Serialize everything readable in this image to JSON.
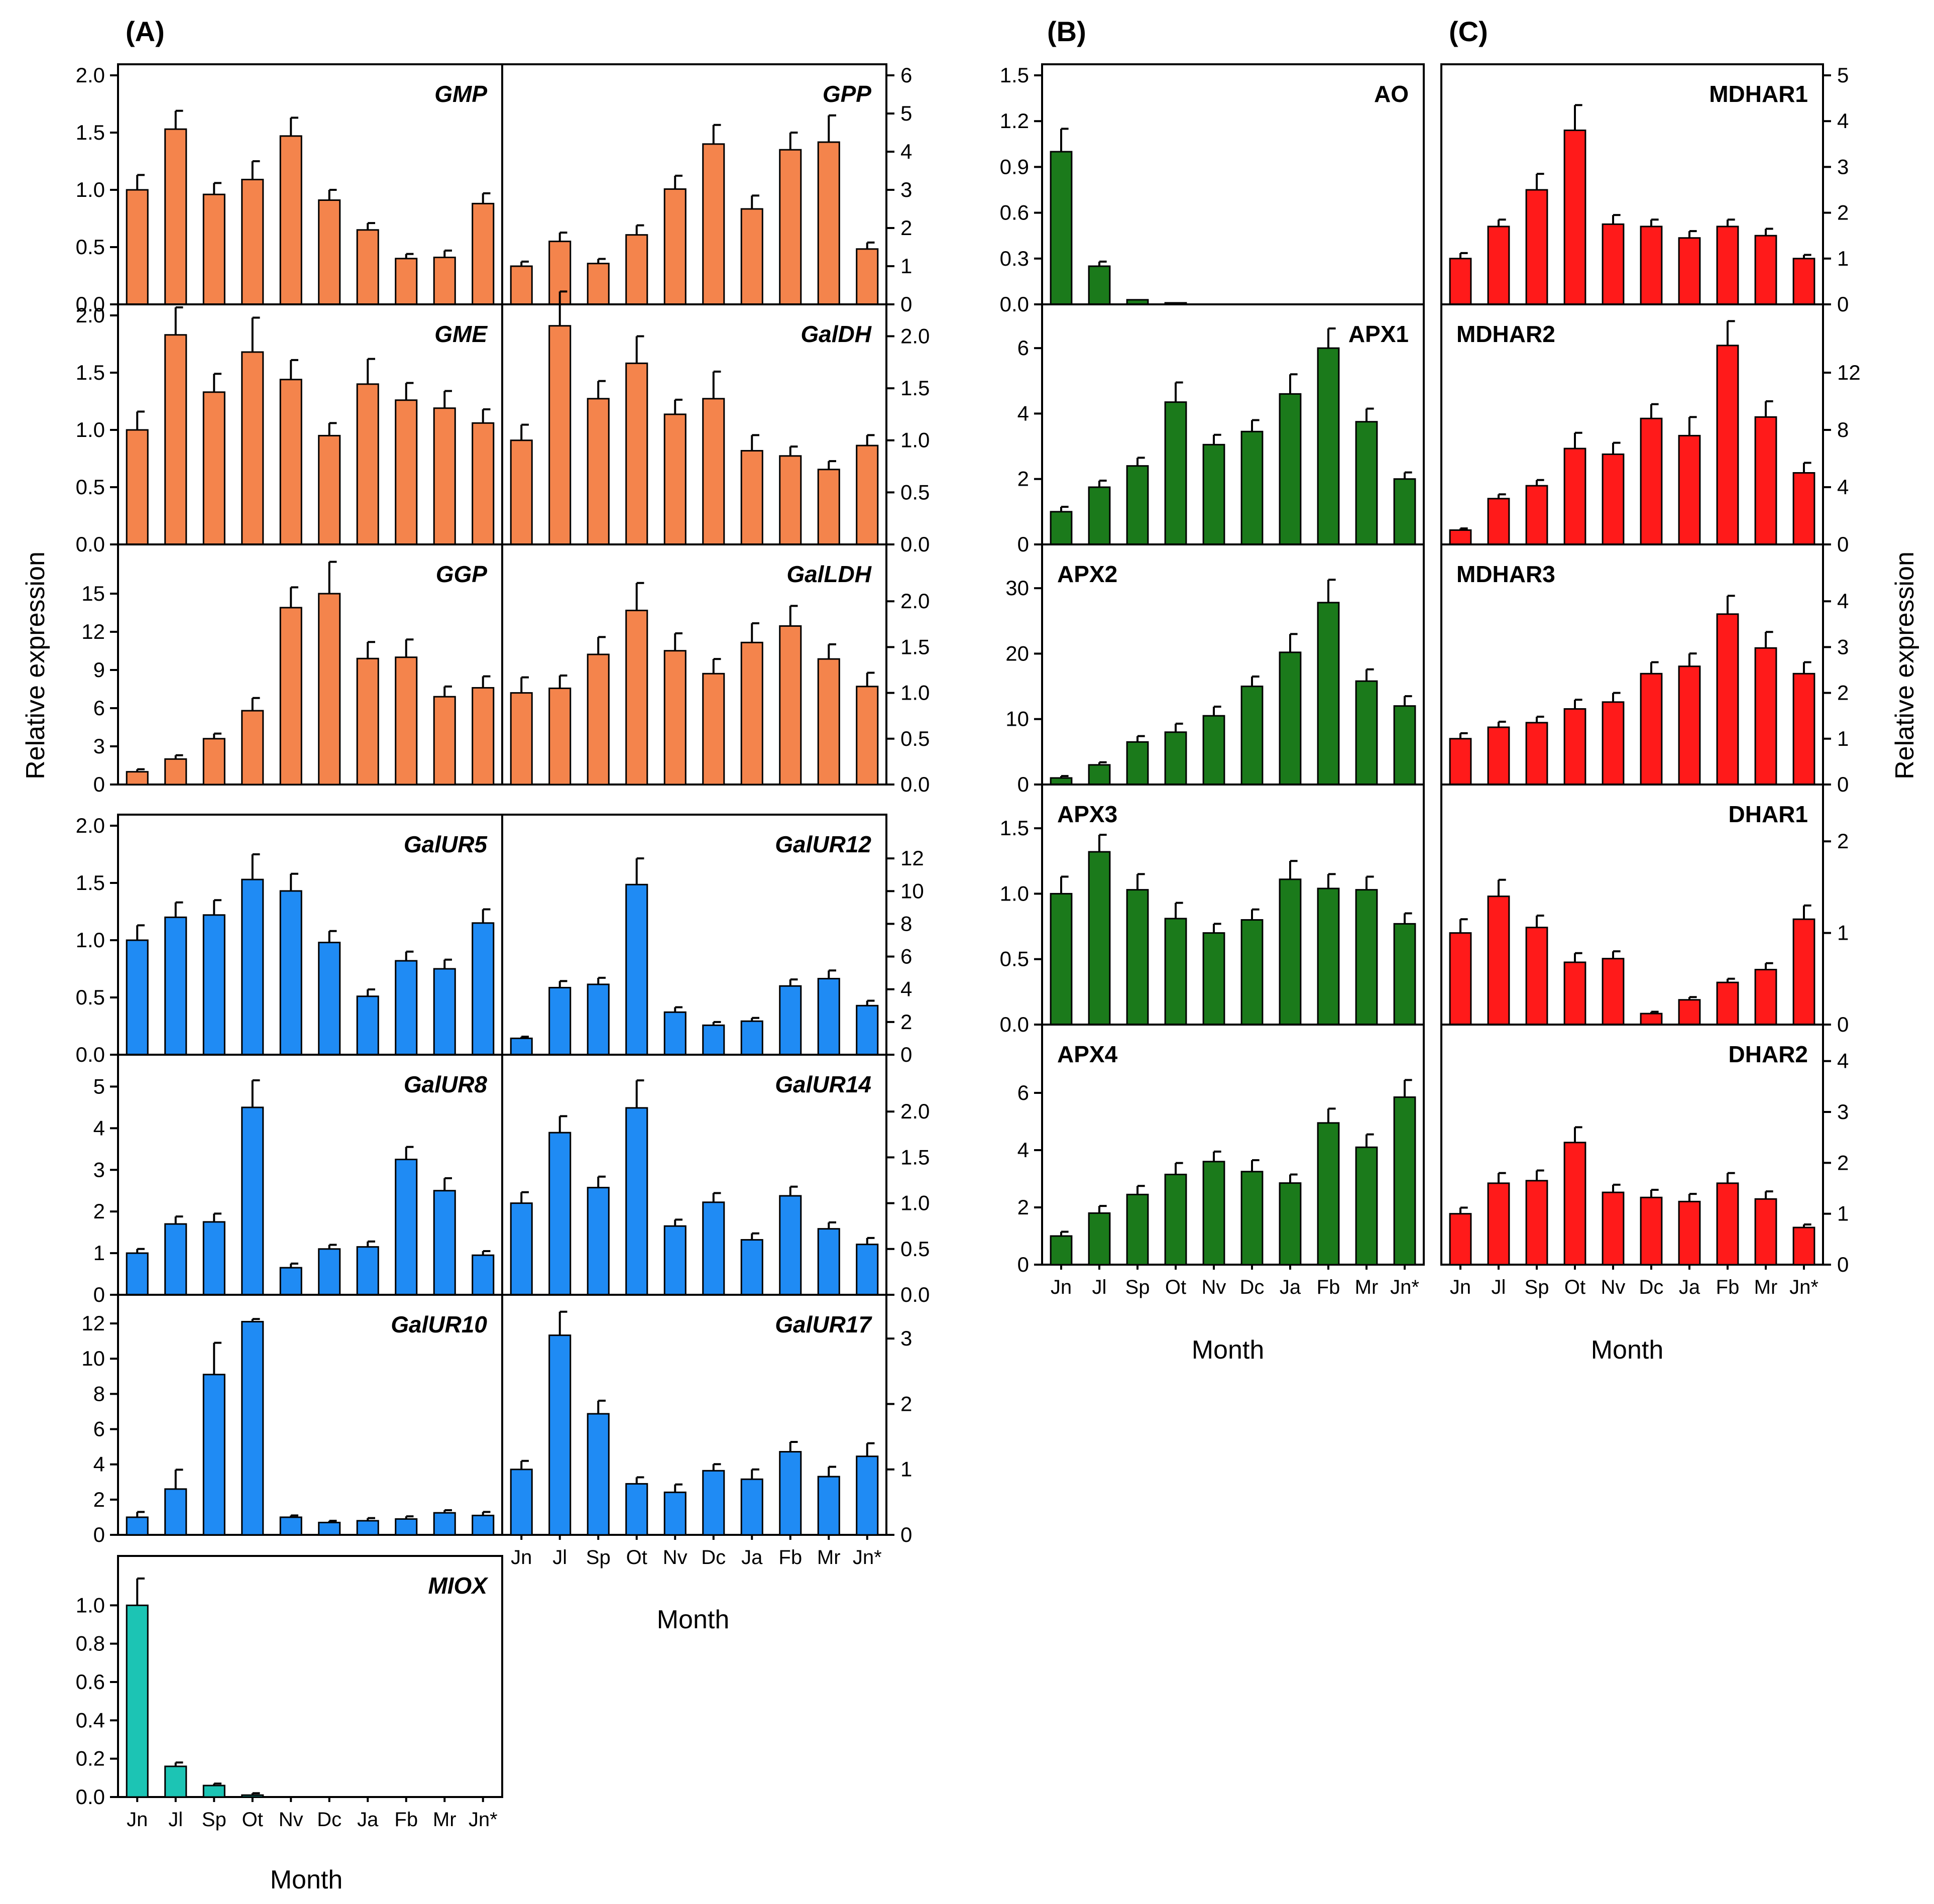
{
  "figure": {
    "panel_letters": [
      "(A)",
      "(B)",
      "(C)"
    ],
    "ylabel": "Relative expression",
    "xlabel": "Month",
    "months": [
      "Jn",
      "Jl",
      "Sp",
      "Ot",
      "Nv",
      "Dc",
      "Ja",
      "Fb",
      "Mr",
      "Jn*"
    ]
  },
  "colors": {
    "orange": "#f4844c",
    "blue": "#1f8bf4",
    "teal": "#1cc4b4",
    "green": "#1b7a1b",
    "red": "#ff1a1a"
  },
  "chart_data": [
    {
      "id": "GMP",
      "type": "bar",
      "title": "GMP",
      "italic": true,
      "color": "orange",
      "ylim": [
        0,
        2.0
      ],
      "ticks": [
        "0.0",
        "0.5",
        "1.0",
        "1.5",
        "2.0"
      ],
      "values": [
        1.0,
        1.53,
        0.96,
        1.09,
        1.47,
        0.91,
        0.65,
        0.4,
        0.41,
        0.88
      ],
      "errors": [
        0.13,
        0.16,
        0.1,
        0.16,
        0.16,
        0.09,
        0.06,
        0.04,
        0.06,
        0.09
      ]
    },
    {
      "id": "GPP",
      "type": "bar",
      "title": "GPP",
      "italic": true,
      "color": "orange",
      "ylim": [
        0,
        6
      ],
      "ticks": [
        "0",
        "1",
        "2",
        "3",
        "4",
        "5",
        "6"
      ],
      "values": [
        1.0,
        1.65,
        1.07,
        1.82,
        3.02,
        4.2,
        2.5,
        4.05,
        4.25,
        1.45
      ],
      "errors": [
        0.12,
        0.23,
        0.12,
        0.25,
        0.35,
        0.5,
        0.35,
        0.45,
        0.7,
        0.17
      ]
    },
    {
      "id": "GME",
      "type": "bar",
      "title": "GME",
      "italic": true,
      "color": "orange",
      "ylim": [
        0,
        2.0
      ],
      "ticks": [
        "0.0",
        "0.5",
        "1.0",
        "1.5",
        "2.0"
      ],
      "values": [
        1.0,
        1.83,
        1.33,
        1.68,
        1.44,
        0.95,
        1.4,
        1.26,
        1.19,
        1.06
      ],
      "errors": [
        0.16,
        0.24,
        0.16,
        0.3,
        0.17,
        0.11,
        0.22,
        0.15,
        0.15,
        0.12
      ]
    },
    {
      "id": "GalDH",
      "type": "bar",
      "title": "GalDH",
      "italic": true,
      "color": "orange",
      "ylim": [
        0,
        2.2
      ],
      "ticks": [
        "0.0",
        "0.5",
        "1.0",
        "1.5",
        "2.0"
      ],
      "values": [
        1.0,
        2.1,
        1.4,
        1.74,
        1.25,
        1.4,
        0.9,
        0.85,
        0.72,
        0.95
      ],
      "errors": [
        0.15,
        0.33,
        0.17,
        0.26,
        0.14,
        0.26,
        0.15,
        0.09,
        0.08,
        0.1
      ]
    },
    {
      "id": "GGP",
      "type": "bar",
      "title": "GGP",
      "italic": true,
      "color": "orange",
      "ylim": [
        0,
        18
      ],
      "ticks": [
        "0",
        "3",
        "6",
        "9",
        "12",
        "15"
      ],
      "values": [
        1.0,
        2.0,
        3.6,
        5.8,
        13.9,
        15.0,
        9.9,
        10.0,
        6.9,
        7.6
      ],
      "errors": [
        0.2,
        0.3,
        0.4,
        1.0,
        1.6,
        2.5,
        1.3,
        1.4,
        0.8,
        0.9
      ]
    },
    {
      "id": "GalLDH",
      "type": "bar",
      "title": "GalLDH",
      "italic": true,
      "color": "orange",
      "ylim": [
        0,
        2.5
      ],
      "ticks": [
        "0.0",
        "0.5",
        "1.0",
        "1.5",
        "2.0"
      ],
      "values": [
        1.0,
        1.05,
        1.42,
        1.9,
        1.46,
        1.21,
        1.55,
        1.73,
        1.37,
        1.07
      ],
      "errors": [
        0.17,
        0.14,
        0.19,
        0.3,
        0.19,
        0.16,
        0.21,
        0.22,
        0.16,
        0.15
      ]
    },
    {
      "id": "GalUR5",
      "type": "bar",
      "title": "GalUR5",
      "italic": true,
      "color": "blue",
      "ylim": [
        0,
        2.0
      ],
      "ticks": [
        "0.0",
        "0.5",
        "1.0",
        "1.5",
        "2.0"
      ],
      "values": [
        1.0,
        1.2,
        1.22,
        1.53,
        1.43,
        0.98,
        0.51,
        0.82,
        0.75,
        1.15
      ],
      "errors": [
        0.13,
        0.13,
        0.13,
        0.22,
        0.15,
        0.1,
        0.06,
        0.08,
        0.08,
        0.12
      ]
    },
    {
      "id": "GalUR12",
      "type": "bar",
      "title": "GalUR12",
      "italic": true,
      "color": "blue",
      "ylim": [
        0,
        14
      ],
      "ticks": [
        "0",
        "2",
        "4",
        "6",
        "8",
        "10",
        "12"
      ],
      "values": [
        1.0,
        4.1,
        4.3,
        10.4,
        2.6,
        1.8,
        2.05,
        4.2,
        4.65,
        3.0
      ],
      "errors": [
        0.1,
        0.4,
        0.4,
        1.6,
        0.3,
        0.2,
        0.2,
        0.4,
        0.5,
        0.3
      ]
    },
    {
      "id": "GalUR8",
      "type": "bar",
      "title": "GalUR8",
      "italic": true,
      "color": "blue",
      "ylim": [
        0,
        5.5
      ],
      "ticks": [
        "0",
        "1",
        "2",
        "3",
        "4",
        "5"
      ],
      "values": [
        1.0,
        1.7,
        1.75,
        4.5,
        0.65,
        1.1,
        1.15,
        3.25,
        2.5,
        0.95
      ],
      "errors": [
        0.1,
        0.18,
        0.2,
        0.65,
        0.1,
        0.1,
        0.13,
        0.3,
        0.3,
        0.1
      ]
    },
    {
      "id": "GalUR14",
      "type": "bar",
      "title": "GalUR14",
      "italic": true,
      "color": "blue",
      "ylim": [
        0,
        2.5
      ],
      "ticks": [
        "0.0",
        "0.5",
        "1.0",
        "1.5",
        "2.0"
      ],
      "values": [
        1.0,
        1.77,
        1.17,
        2.04,
        0.75,
        1.01,
        0.6,
        1.08,
        0.72,
        0.55
      ],
      "errors": [
        0.12,
        0.18,
        0.12,
        0.3,
        0.07,
        0.1,
        0.07,
        0.1,
        0.07,
        0.07
      ]
    },
    {
      "id": "GalUR10",
      "type": "bar",
      "title": "GalUR10",
      "italic": true,
      "color": "blue",
      "ylim": [
        0,
        13
      ],
      "ticks": [
        "0",
        "2",
        "4",
        "6",
        "8",
        "10",
        "12"
      ],
      "values": [
        1.0,
        2.6,
        9.1,
        12.1,
        1.0,
        0.7,
        0.8,
        0.9,
        1.25,
        1.1
      ],
      "errors": [
        0.3,
        1.1,
        1.8,
        0.15,
        0.1,
        0.1,
        0.15,
        0.15,
        0.15,
        0.2
      ]
    },
    {
      "id": "GalUR17",
      "type": "bar",
      "title": "GalUR17",
      "italic": true,
      "color": "blue",
      "ylim": [
        0,
        3.5
      ],
      "ticks": [
        "0",
        "1",
        "2",
        "3"
      ],
      "values": [
        1.0,
        3.05,
        1.85,
        0.78,
        0.65,
        0.98,
        0.85,
        1.27,
        0.89,
        1.2
      ],
      "errors": [
        0.13,
        0.36,
        0.2,
        0.1,
        0.12,
        0.1,
        0.15,
        0.15,
        0.15,
        0.2
      ]
    },
    {
      "id": "MIOX",
      "type": "bar",
      "title": "MIOX",
      "italic": true,
      "color": "teal",
      "ylim": [
        0,
        1.2
      ],
      "ticks": [
        "0.0",
        "0.2",
        "0.4",
        "0.6",
        "0.8",
        "1.0"
      ],
      "values": [
        1.0,
        0.16,
        0.06,
        0.01,
        0.0,
        0.0,
        0.0,
        0.0,
        0.0,
        0.0
      ],
      "errors": [
        0.14,
        0.02,
        0.01,
        0.01,
        0,
        0,
        0,
        0,
        0,
        0
      ]
    },
    {
      "id": "AO",
      "type": "bar",
      "title": "AO",
      "italic": false,
      "color": "green",
      "ylim": [
        0,
        1.5
      ],
      "ticks": [
        "0.0",
        "0.3",
        "0.6",
        "0.9",
        "1.2",
        "1.5"
      ],
      "values": [
        1.0,
        0.25,
        0.03,
        0.01,
        0,
        0,
        0,
        0,
        0,
        0
      ],
      "errors": [
        0.15,
        0.03,
        0,
        0,
        0,
        0,
        0,
        0,
        0,
        0
      ]
    },
    {
      "id": "APX1",
      "type": "bar",
      "title": "APX1",
      "italic": false,
      "color": "green",
      "ylim": [
        0,
        7
      ],
      "ticks": [
        "0",
        "2",
        "4",
        "6"
      ],
      "values": [
        1.0,
        1.75,
        2.4,
        4.35,
        3.05,
        3.45,
        4.6,
        6.0,
        3.75,
        2.0
      ],
      "errors": [
        0.15,
        0.2,
        0.25,
        0.6,
        0.3,
        0.35,
        0.6,
        0.6,
        0.4,
        0.2
      ]
    },
    {
      "id": "APX2",
      "type": "bar",
      "title": "APX2",
      "italic": false,
      "color": "green",
      "ylim": [
        0,
        35
      ],
      "ticks": [
        "0",
        "10",
        "20",
        "30"
      ],
      "values": [
        1.0,
        3.0,
        6.5,
        8.0,
        10.5,
        15.0,
        20.2,
        27.8,
        15.8,
        12.0
      ],
      "errors": [
        0.3,
        0.4,
        0.9,
        1.3,
        1.4,
        1.5,
        2.8,
        3.5,
        1.8,
        1.5
      ]
    },
    {
      "id": "APX3",
      "type": "bar",
      "title": "APX3",
      "italic": false,
      "color": "green",
      "ylim": [
        0,
        1.75
      ],
      "ticks": [
        "0.0",
        "0.5",
        "1.0",
        "1.5"
      ],
      "values": [
        1.0,
        1.32,
        1.03,
        0.81,
        0.7,
        0.8,
        1.11,
        1.04,
        1.03,
        0.77
      ],
      "errors": [
        0.13,
        0.13,
        0.12,
        0.12,
        0.07,
        0.08,
        0.14,
        0.11,
        0.1,
        0.08
      ]
    },
    {
      "id": "APX4",
      "type": "bar",
      "title": "APX4",
      "italic": false,
      "color": "green",
      "ylim": [
        0,
        8
      ],
      "ticks": [
        "0",
        "2",
        "4",
        "6"
      ],
      "values": [
        1.0,
        1.8,
        2.45,
        3.15,
        3.6,
        3.25,
        2.85,
        4.95,
        4.1,
        5.85
      ],
      "errors": [
        0.15,
        0.25,
        0.3,
        0.4,
        0.35,
        0.4,
        0.3,
        0.5,
        0.45,
        0.6
      ]
    },
    {
      "id": "MDHAR1",
      "type": "bar",
      "title": "MDHAR1",
      "italic": false,
      "color": "red",
      "ylim": [
        0,
        5
      ],
      "ticks": [
        "0",
        "1",
        "2",
        "3",
        "4",
        "5"
      ],
      "values": [
        1.0,
        1.7,
        2.5,
        3.8,
        1.75,
        1.7,
        1.45,
        1.7,
        1.5,
        1.0
      ],
      "errors": [
        0.12,
        0.15,
        0.35,
        0.55,
        0.2,
        0.15,
        0.15,
        0.15,
        0.15,
        0.08
      ]
    },
    {
      "id": "MDHAR2",
      "type": "bar",
      "title": "MDHAR2",
      "italic": false,
      "color": "red",
      "ylim": [
        0,
        16
      ],
      "ticks": [
        "0",
        "4",
        "8",
        "12"
      ],
      "values": [
        1.0,
        3.2,
        4.1,
        6.7,
        6.3,
        8.8,
        7.6,
        13.9,
        8.9,
        5.0
      ],
      "errors": [
        0.12,
        0.3,
        0.4,
        1.1,
        0.8,
        1.0,
        1.3,
        1.7,
        1.1,
        0.7
      ]
    },
    {
      "id": "MDHAR3",
      "type": "bar",
      "title": "MDHAR3",
      "italic": false,
      "color": "red",
      "ylim": [
        0,
        5
      ],
      "ticks": [
        "0",
        "1",
        "2",
        "3",
        "4"
      ],
      "values": [
        1.0,
        1.25,
        1.35,
        1.65,
        1.8,
        2.42,
        2.58,
        3.72,
        2.98,
        2.42
      ],
      "errors": [
        0.12,
        0.12,
        0.13,
        0.2,
        0.2,
        0.25,
        0.28,
        0.4,
        0.35,
        0.25
      ]
    },
    {
      "id": "DHAR1",
      "type": "bar",
      "title": "DHAR1",
      "italic": false,
      "color": "red",
      "ylim": [
        0,
        2.5
      ],
      "ticks": [
        "0",
        "1",
        "2"
      ],
      "values": [
        1.0,
        1.4,
        1.06,
        0.68,
        0.72,
        0.12,
        0.27,
        0.46,
        0.6,
        1.15
      ],
      "errors": [
        0.15,
        0.18,
        0.13,
        0.1,
        0.08,
        0.02,
        0.03,
        0.04,
        0.07,
        0.15
      ]
    },
    {
      "id": "DHAR2",
      "type": "bar",
      "title": "DHAR2",
      "italic": false,
      "color": "red",
      "ylim": [
        0,
        4.5
      ],
      "ticks": [
        "0",
        "1",
        "2",
        "3",
        "4"
      ],
      "values": [
        1.0,
        1.6,
        1.65,
        2.4,
        1.42,
        1.32,
        1.24,
        1.6,
        1.29,
        0.73
      ],
      "errors": [
        0.12,
        0.2,
        0.2,
        0.3,
        0.15,
        0.15,
        0.15,
        0.2,
        0.15,
        0.06
      ]
    }
  ]
}
